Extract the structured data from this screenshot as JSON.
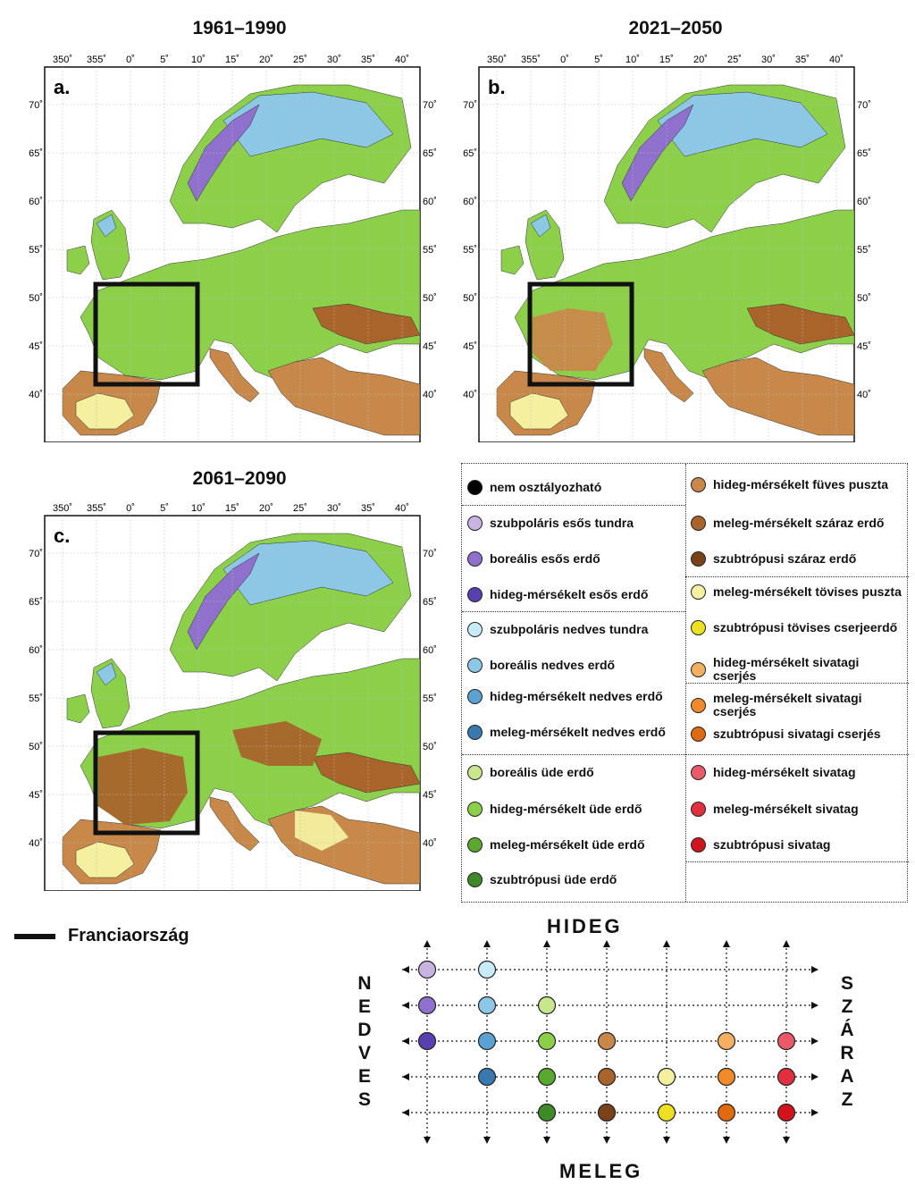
{
  "maps": [
    {
      "title": "1961–1990",
      "panel_label": "a."
    },
    {
      "title": "2021–2050",
      "panel_label": "b."
    },
    {
      "title": "2061–2090",
      "panel_label": "c."
    }
  ],
  "lon_ticks": [
    "350˚",
    "355˚",
    "0˚",
    "5˚",
    "10˚",
    "15˚",
    "20˚",
    "25˚",
    "30˚",
    "35˚",
    "40˚"
  ],
  "lat_ticks": [
    "70˚",
    "65˚",
    "60˚",
    "55˚",
    "50˚",
    "45˚",
    "40˚"
  ],
  "legend": {
    "left": [
      {
        "label": "nem osztályozható",
        "color": "#000000"
      },
      {
        "label": "szubpoláris esős tundra",
        "color": "#c9b3e0"
      },
      {
        "label": "boreális esős erdő",
        "color": "#8f70cc"
      },
      {
        "label": "hideg-mérsékelt esős erdő",
        "color": "#5a3fb0"
      },
      {
        "label": "szubpoláris nedves tundra",
        "color": "#c8ecf7"
      },
      {
        "label": "boreális nedves erdő",
        "color": "#8cc8e6"
      },
      {
        "label": "hideg-mérsékelt nedves erdő",
        "color": "#5aa2d2"
      },
      {
        "label": "meleg-mérsékelt nedves erdő",
        "color": "#3a78b0"
      },
      {
        "label": "boreális üde erdő",
        "color": "#c8e68c"
      },
      {
        "label": "hideg-mérsékelt üde erdő",
        "color": "#8cd04a"
      },
      {
        "label": "meleg-mérsékelt üde erdő",
        "color": "#5aa82e"
      },
      {
        "label": "szubtrópusi üde erdő",
        "color": "#3e8a2a"
      }
    ],
    "right": [
      {
        "label": "hideg-mérsékelt füves puszta",
        "color": "#c8884a"
      },
      {
        "label": "meleg-mérsékelt száraz erdő",
        "color": "#a8642a"
      },
      {
        "label": "szubtrópusi száraz erdő",
        "color": "#7a4218"
      },
      {
        "label": "meleg-mérsékelt tövises puszta",
        "color": "#f4f0a0"
      },
      {
        "label": "szubtrópusi tövises cserjeerdő",
        "color": "#ece020"
      },
      {
        "label": "hideg-mérsékelt sivatagi cserjés",
        "color": "#f4b060"
      },
      {
        "label": "meleg-mérsékelt sivatagi cserjés",
        "color": "#f08a2a"
      },
      {
        "label": "szubtrópusi sivatagi cserjés",
        "color": "#e06a10"
      },
      {
        "label": "hideg-mérsékelt sivatag",
        "color": "#e85a6a"
      },
      {
        "label": "meleg-mérsékelt sivatag",
        "color": "#e03040"
      },
      {
        "label": "szubtrópusi sivatag",
        "color": "#d0141e"
      }
    ]
  },
  "france_key": {
    "label": "Franciaország"
  },
  "diagram": {
    "top_label": "HIDEG",
    "bottom_label": "MELEG",
    "left_label": "NEDVES",
    "right_label": "SZÁRAZ",
    "rows": [
      [
        "#c9b3e0",
        "#c8ecf7",
        null,
        null,
        null,
        null,
        null
      ],
      [
        "#8f70cc",
        "#8cc8e6",
        "#c8e68c",
        null,
        null,
        null,
        null
      ],
      [
        "#5a3fb0",
        "#5aa2d2",
        "#8cd04a",
        "#c8884a",
        null,
        "#f4b060",
        "#e85a6a"
      ],
      [
        null,
        "#3a78b0",
        "#5aa82e",
        "#a8642a",
        "#f4f0a0",
        "#f08a2a",
        "#e03040"
      ],
      [
        null,
        null,
        "#3e8a2a",
        "#7a4218",
        "#ece020",
        "#e06a10",
        "#d0141e"
      ]
    ]
  },
  "colors": {
    "sea": "#ffffff",
    "forest": "#8cd04a",
    "boreal": "#8cc8e6",
    "tundra": "#8f70cc",
    "steppe": "#c8884a",
    "dry": "#a8642a",
    "thorn": "#f4f0a0",
    "desert": "#ece020"
  }
}
